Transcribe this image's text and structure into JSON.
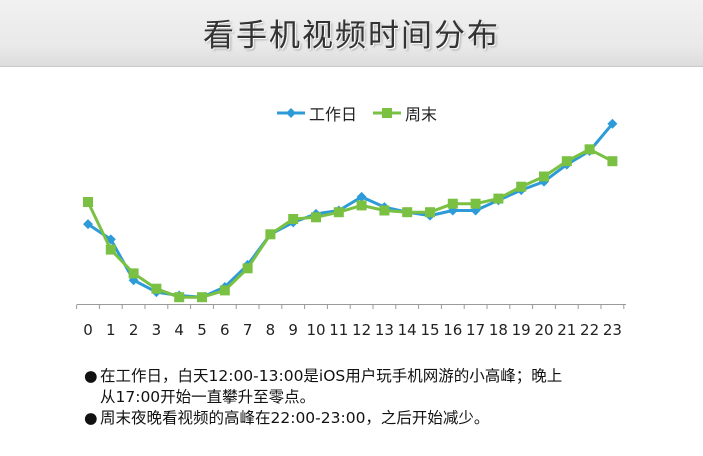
{
  "page": {
    "title": "看手机视频时间分布"
  },
  "chart_data": {
    "type": "line",
    "categories": [
      "0",
      "1",
      "2",
      "3",
      "4",
      "5",
      "6",
      "7",
      "8",
      "9",
      "10",
      "11",
      "12",
      "13",
      "14",
      "15",
      "16",
      "17",
      "18",
      "19",
      "20",
      "21",
      "22",
      "23"
    ],
    "ylim": [
      0,
      100
    ],
    "grid": false,
    "legend_placement": "top-center",
    "series": [
      {
        "name": "工作日",
        "color": "#2e9bd9",
        "marker": "diamond",
        "values": [
          47,
          38,
          14,
          7,
          5,
          4,
          10,
          23,
          41,
          48,
          53,
          55,
          63,
          57,
          54,
          52,
          55,
          55,
          61,
          67,
          72,
          82,
          90,
          106
        ]
      },
      {
        "name": "周末",
        "color": "#7ac143",
        "marker": "square",
        "values": [
          60,
          32,
          18,
          9,
          4,
          4,
          8,
          21,
          41,
          50,
          51,
          54,
          58,
          55,
          54,
          54,
          59,
          59,
          62,
          69,
          75,
          84,
          91,
          84
        ]
      }
    ]
  },
  "notes": [
    {
      "bullet": "●",
      "line1": "在工作日，白天12:00-13:00是iOS用户玩手机网游的小高峰；晚上",
      "line2": "从17:00开始一直攀升至零点。"
    },
    {
      "bullet": "●",
      "line1": "周末夜晚看视频的高峰在22:00-23:00，之后开始减少。"
    }
  ]
}
